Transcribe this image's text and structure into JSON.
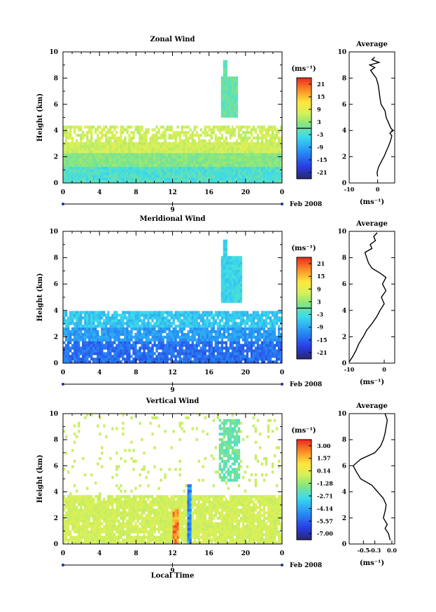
{
  "chart_data": [
    {
      "type": "heatmap",
      "title": "Zonal Wind",
      "ylabel": "Height (km)",
      "xticks": [
        "0",
        "4",
        "8",
        "12",
        "16",
        "20",
        "0"
      ],
      "yticks": [
        "0",
        "2",
        "4",
        "6",
        "8",
        "10"
      ],
      "xlim": [
        0,
        24
      ],
      "ylim": [
        0,
        10
      ],
      "date_day": "9",
      "date_label": "Feb 2008",
      "colorbar": {
        "unit": "(ms⁻¹)",
        "ticks": [
          "21",
          "15",
          "9",
          "3",
          "-3",
          "-9",
          "-15",
          "-21"
        ],
        "range": [
          -24,
          24
        ],
        "zero_line": 0
      },
      "profile": {
        "title": "Average",
        "xlabel": "(ms⁻¹)",
        "xticks": [
          "-10",
          "0"
        ],
        "xlim": [
          -10,
          6
        ],
        "yticks": [
          "0",
          "2",
          "4",
          "6",
          "8",
          "10"
        ],
        "points": [
          [
            0.0,
            0.5
          ],
          [
            -0.2,
            0.8
          ],
          [
            0.3,
            1.2
          ],
          [
            1.2,
            1.6
          ],
          [
            2.2,
            2.0
          ],
          [
            3.0,
            2.4
          ],
          [
            3.8,
            2.8
          ],
          [
            4.5,
            3.2
          ],
          [
            5.0,
            3.6
          ],
          [
            4.3,
            3.8
          ],
          [
            5.4,
            4.0
          ],
          [
            4.6,
            4.2
          ],
          [
            4.0,
            4.5
          ],
          [
            3.0,
            5.0
          ],
          [
            2.6,
            5.5
          ],
          [
            1.2,
            6.0
          ],
          [
            0.8,
            6.5
          ],
          [
            0.5,
            7.0
          ],
          [
            0.2,
            7.5
          ],
          [
            -0.5,
            8.0
          ],
          [
            -1.5,
            8.3
          ],
          [
            -2.5,
            8.6
          ],
          [
            -1.0,
            8.8
          ],
          [
            -2.8,
            9.0
          ],
          [
            0.5,
            9.2
          ],
          [
            -2.0,
            9.4
          ],
          [
            -1.0,
            9.6
          ]
        ]
      }
    },
    {
      "type": "heatmap",
      "title": "Meridional Wind",
      "ylabel": "Height (km)",
      "xticks": [
        "0",
        "4",
        "8",
        "12",
        "16",
        "20",
        "0"
      ],
      "yticks": [
        "0",
        "2",
        "4",
        "6",
        "8",
        "10"
      ],
      "xlim": [
        0,
        24
      ],
      "ylim": [
        0,
        10
      ],
      "date_day": "9",
      "date_label": "Feb 2008",
      "colorbar": {
        "unit": "(ms⁻¹)",
        "ticks": [
          "21",
          "15",
          "9",
          "3",
          "-3",
          "-9",
          "-15",
          "-21"
        ],
        "range": [
          -24,
          24
        ],
        "zero_line": 0
      },
      "profile": {
        "title": "Average",
        "xlabel": "(ms⁻¹)",
        "xticks": [
          "-10",
          "0"
        ],
        "xlim": [
          -10,
          3
        ],
        "yticks": [
          "0",
          "2",
          "4",
          "6",
          "8",
          "10"
        ],
        "points": [
          [
            -10.0,
            0.1
          ],
          [
            -9.0,
            0.5
          ],
          [
            -8.0,
            1.0
          ],
          [
            -7.2,
            1.5
          ],
          [
            -6.0,
            2.0
          ],
          [
            -5.0,
            2.5
          ],
          [
            -3.5,
            3.0
          ],
          [
            -2.2,
            3.5
          ],
          [
            -1.2,
            4.0
          ],
          [
            0.0,
            4.5
          ],
          [
            -0.8,
            5.0
          ],
          [
            0.5,
            5.5
          ],
          [
            -0.5,
            6.0
          ],
          [
            0.5,
            6.5
          ],
          [
            -1.0,
            6.8
          ],
          [
            -3.5,
            7.2
          ],
          [
            -4.5,
            7.6
          ],
          [
            -5.0,
            8.0
          ],
          [
            -5.5,
            8.4
          ],
          [
            -3.5,
            8.7
          ],
          [
            -4.0,
            9.0
          ],
          [
            -2.5,
            9.3
          ],
          [
            -3.0,
            9.6
          ],
          [
            -2.0,
            9.9
          ]
        ]
      }
    },
    {
      "type": "heatmap",
      "title": "Vertical Wind",
      "xlabel": "Local Time",
      "ylabel": "Height (km)",
      "xticks": [
        "0",
        "4",
        "8",
        "12",
        "16",
        "20",
        "0"
      ],
      "yticks": [
        "0",
        "2",
        "4",
        "6",
        "8",
        "10"
      ],
      "xlim": [
        0,
        24
      ],
      "ylim": [
        0,
        10
      ],
      "date_day": "9",
      "date_label": "Feb 2008",
      "colorbar": {
        "unit": "(ms⁻¹)",
        "ticks": [
          "3.00",
          "1.57",
          "0.14",
          "-1.28",
          "-2.71",
          "-4.14",
          "-5.57",
          "-7.00"
        ],
        "range": [
          -7.7,
          3.7
        ]
      },
      "profile": {
        "title": "Average",
        "xlabel": "(ms⁻¹)",
        "xticks": [
          "-0.5",
          "-0.3",
          "0.0"
        ],
        "xlim": [
          -0.75,
          0.05
        ],
        "yticks": [
          "0",
          "2",
          "4",
          "6",
          "8",
          "10"
        ],
        "points": [
          [
            -0.03,
            0.3
          ],
          [
            -0.06,
            0.8
          ],
          [
            -0.12,
            1.2
          ],
          [
            -0.08,
            1.5
          ],
          [
            -0.15,
            2.0
          ],
          [
            -0.12,
            2.5
          ],
          [
            -0.1,
            3.0
          ],
          [
            -0.15,
            3.5
          ],
          [
            -0.25,
            4.0
          ],
          [
            -0.35,
            4.5
          ],
          [
            -0.55,
            5.0
          ],
          [
            -0.62,
            5.5
          ],
          [
            -0.68,
            6.0
          ],
          [
            -0.55,
            6.5
          ],
          [
            -0.3,
            7.0
          ],
          [
            -0.2,
            7.5
          ],
          [
            -0.15,
            8.0
          ],
          [
            -0.12,
            8.5
          ],
          [
            -0.1,
            9.0
          ],
          [
            -0.08,
            9.5
          ],
          [
            -0.12,
            10.0
          ]
        ]
      }
    }
  ]
}
